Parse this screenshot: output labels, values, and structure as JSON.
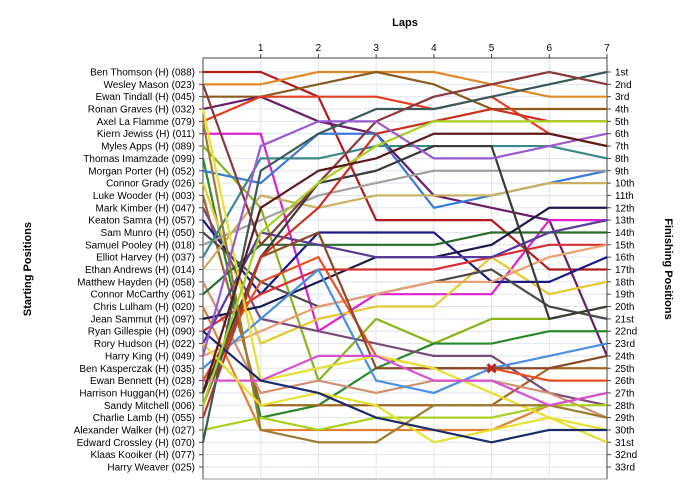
{
  "chart_data": {
    "type": "line",
    "title": "",
    "xlabel": "Laps",
    "ylabel": "Starting Positions",
    "ylabel_right": "Finishing Positions",
    "x": [
      0,
      1,
      2,
      3,
      4,
      5,
      6,
      7
    ],
    "x_tick_labels": [
      "1",
      "2",
      "3",
      "4",
      "5",
      "6",
      "7"
    ],
    "y_range": [
      1,
      33
    ],
    "grid": true,
    "starting_positions": [
      "Ben Thomson (H) (088)",
      "Wesley Mason (023)",
      "Ewan Tindall (H) (045)",
      "Ronan Graves (H) (032)",
      "Axel La Flamme (079)",
      "Kiern Jewiss (H) (011)",
      "Myles Apps (H) (089)",
      "Thomas Imamzade (099)",
      "Morgan Porter (H) (052)",
      "Connor Grady (026)",
      "Luke Wooder (H) (003)",
      "Mark Kimber (H) (047)",
      "Keaton Samra (H) (057)",
      "Sam Munro (H) (050)",
      "Samuel Pooley (H) (018)",
      "Elliot Harvey (H) (037)",
      "Ethan Andrews (H) (014)",
      "Matthew Hayden (H) (058)",
      "Connor McCarthy (061)",
      "Chris Lulham (H) (020)",
      "Jean Sammut (H) (097)",
      "Ryan Gillespie (H) (090)",
      "Rory Hudson (H) (022)",
      "Harry King (H) (049)",
      "Ben Kasperczak (H) (035)",
      "Ewan Bennett (H) (028)",
      "Harrison Huggan(H) (026)",
      "Sandy Mitchell (006)",
      "Charlie Lamb (H) (055)",
      "Alexander Walker (H) (027)",
      "Edward Crossley (H) (070)",
      "Klaas Kooiker (H) (077)",
      "Harry Weaver (025)"
    ],
    "finishing_positions": [
      "1st",
      "2nd",
      "3rd",
      "4th",
      "5th",
      "6th",
      "7th",
      "8th",
      "9th",
      "10th",
      "11th",
      "12th",
      "13th",
      "14th",
      "15th",
      "16th",
      "17th",
      "18th",
      "19th",
      "20th",
      "21st",
      "22nd",
      "23rd",
      "24th",
      "25th",
      "26th",
      "27th",
      "28th",
      "29th",
      "30th",
      "31st",
      "32nd",
      "33rd"
    ],
    "series": [
      {
        "color": "#b01c1c",
        "values": [
          1,
          1,
          3,
          13,
          13,
          13,
          17,
          17
        ]
      },
      {
        "color": "#e08a2a",
        "values": [
          2,
          2,
          1,
          1,
          1,
          2,
          3,
          3
        ]
      },
      {
        "color": "#8b5a1e",
        "values": [
          3,
          3,
          2,
          1,
          2,
          4,
          4,
          4
        ]
      },
      {
        "color": "#6a1e6a",
        "values": [
          4,
          3,
          5,
          6,
          11,
          12,
          13,
          24
        ]
      },
      {
        "color": "#e04020",
        "values": [
          5,
          3,
          3,
          3,
          4,
          3,
          6,
          7
        ]
      },
      {
        "color": "#e020d0",
        "values": [
          6,
          6,
          22,
          19,
          19,
          19,
          13,
          13
        ]
      },
      {
        "color": "#8ab51a",
        "values": [
          7,
          12,
          26,
          21,
          23,
          21,
          21,
          20
        ]
      },
      {
        "color": "#2a8a2a",
        "values": [
          8,
          29,
          28,
          25,
          23,
          23,
          22,
          22
        ]
      },
      {
        "color": "#3a7ad8",
        "values": [
          9,
          10,
          6,
          6,
          12,
          11,
          10,
          9
        ]
      },
      {
        "color": "#e8c830",
        "values": [
          10,
          23,
          21,
          20,
          20,
          16,
          19,
          18
        ]
      },
      {
        "color": "#a06820",
        "values": [
          11,
          28,
          28,
          28,
          28,
          28,
          25,
          25
        ]
      },
      {
        "color": "#7a4a7a",
        "values": [
          12,
          21,
          22,
          23,
          24,
          24,
          27,
          28
        ]
      },
      {
        "color": "#1a1a8a",
        "values": [
          13,
          19,
          14,
          14,
          14,
          18,
          18,
          16
        ]
      },
      {
        "color": "#4a4a4a",
        "values": [
          14,
          18,
          20,
          19,
          18,
          17,
          20,
          21
        ]
      },
      {
        "color": "#a0a0a0",
        "values": [
          15,
          13,
          11,
          10,
          9,
          9,
          9,
          9
        ]
      },
      {
        "color": "#3a8a8a",
        "values": [
          16,
          8,
          8,
          7,
          7,
          7,
          7,
          8
        ]
      },
      {
        "color": "#c8b060",
        "values": [
          17,
          11,
          12,
          11,
          11,
          11,
          10,
          10
        ]
      },
      {
        "color": "#d09070",
        "values": [
          18,
          27,
          26,
          27,
          26,
          26,
          27,
          29
        ]
      },
      {
        "color": "#2a6a2a",
        "values": [
          19,
          15,
          15,
          15,
          15,
          14,
          14,
          14
        ]
      },
      {
        "color": "#e08030",
        "values": [
          20,
          30,
          30,
          30,
          30,
          30,
          28,
          27
        ]
      },
      {
        "color": "#1a1a4a",
        "values": [
          21,
          20,
          18,
          16,
          16,
          15,
          12,
          12
        ]
      },
      {
        "color": "#d83030",
        "values": [
          22,
          19,
          17,
          17,
          17,
          16,
          15,
          15
        ]
      },
      {
        "color": "#5a3a9a",
        "values": [
          23,
          14,
          15,
          16,
          16,
          16,
          14,
          13
        ]
      },
      {
        "color": "#e8a070",
        "values": [
          24,
          22,
          20,
          19,
          18,
          18,
          16,
          15
        ]
      },
      {
        "color": "#4a90e0",
        "values": [
          25,
          21,
          17,
          26,
          27,
          25,
          24,
          23
        ]
      },
      {
        "color": "#e85020",
        "values": [
          26,
          18,
          16,
          24,
          25,
          25,
          26,
          26
        ]
      },
      {
        "color": "#3a3a3a",
        "values": [
          27,
          16,
          10,
          9,
          7,
          7,
          21,
          20
        ]
      },
      {
        "color": "#8a4a2a",
        "values": [
          28,
          16,
          14,
          25,
          25,
          25,
          25,
          24
        ]
      },
      {
        "color": "#c83020",
        "values": [
          29,
          16,
          12,
          6,
          5,
          4,
          5,
          5
        ]
      },
      {
        "color": "#a8d020",
        "values": [
          30,
          29,
          30,
          29,
          29,
          29,
          28,
          28
        ]
      },
      {
        "color": "#3a5a5a",
        "values": [
          31,
          9,
          6,
          4,
          4,
          3,
          2,
          1
        ]
      },
      {
        "color": "#8a3a3a",
        "values": [
          2,
          15,
          10,
          5,
          3,
          2,
          1,
          2
        ]
      },
      {
        "color": "#e8e030",
        "values": [
          4,
          26,
          25,
          24,
          25,
          27,
          29,
          30
        ]
      },
      {
        "color": "#a07a30",
        "values": [
          5,
          30,
          31,
          31,
          28,
          28,
          28,
          29
        ]
      },
      {
        "color": "#d850d0",
        "values": [
          26,
          26,
          24,
          24,
          26,
          26,
          28,
          27
        ]
      },
      {
        "color": "#e8e030",
        "values": [
          23,
          28,
          27,
          28,
          31,
          30,
          29,
          31
        ]
      },
      {
        "color": "#1a2a6a",
        "values": [
          22,
          26,
          27,
          29,
          30,
          31,
          30,
          30
        ]
      },
      {
        "color": "#a8d020",
        "values": [
          28,
          14,
          10,
          7,
          5,
          5,
          5,
          5
        ]
      },
      {
        "color": "#9a5ad0",
        "values": [
          24,
          7,
          5,
          5,
          8,
          8,
          7,
          6
        ]
      },
      {
        "color": "#5a1a1a",
        "values": [
          27,
          12,
          9,
          8,
          6,
          6,
          6,
          7
        ]
      }
    ],
    "annotations": [
      {
        "type": "retired-marker",
        "x": 5,
        "y": 25,
        "color": "#c02020"
      }
    ]
  }
}
